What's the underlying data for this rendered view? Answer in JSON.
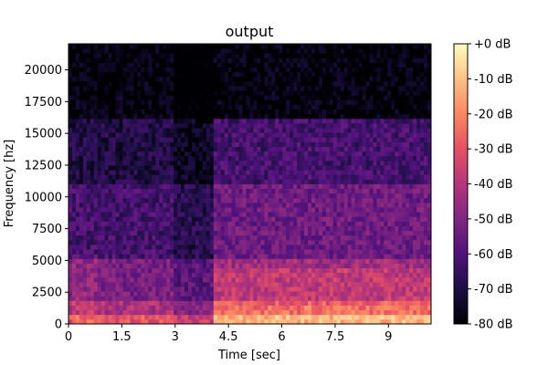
{
  "chart_data": {
    "type": "heatmap",
    "title": "output",
    "xlabel": "Time [sec]",
    "ylabel": "Frequency [hz]",
    "xlim": [
      0,
      10.2
    ],
    "ylim": [
      0,
      22050
    ],
    "x_ticks": [
      0,
      1.5,
      3,
      4.5,
      6,
      7.5,
      9
    ],
    "x_tick_labels": [
      "0",
      "1.5",
      "3",
      "4.5",
      "6",
      "7.5",
      "9"
    ],
    "y_ticks": [
      0,
      2500,
      5000,
      7500,
      10000,
      12500,
      15000,
      17500,
      20000
    ],
    "y_tick_labels": [
      "0",
      "2500",
      "5000",
      "7500",
      "10000",
      "12500",
      "15000",
      "17500",
      "20000"
    ],
    "colorbar": {
      "range_db": [
        -80,
        0
      ],
      "ticks": [
        0,
        -10,
        -20,
        -30,
        -40,
        -50,
        -60,
        -70,
        -80
      ],
      "tick_labels": [
        "+0 dB",
        "-10 dB",
        "-20 dB",
        "-30 dB",
        "-40 dB",
        "-50 dB",
        "-60 dB",
        "-70 dB",
        "-80 dB"
      ],
      "colormap": "magma"
    },
    "grid": false
  }
}
